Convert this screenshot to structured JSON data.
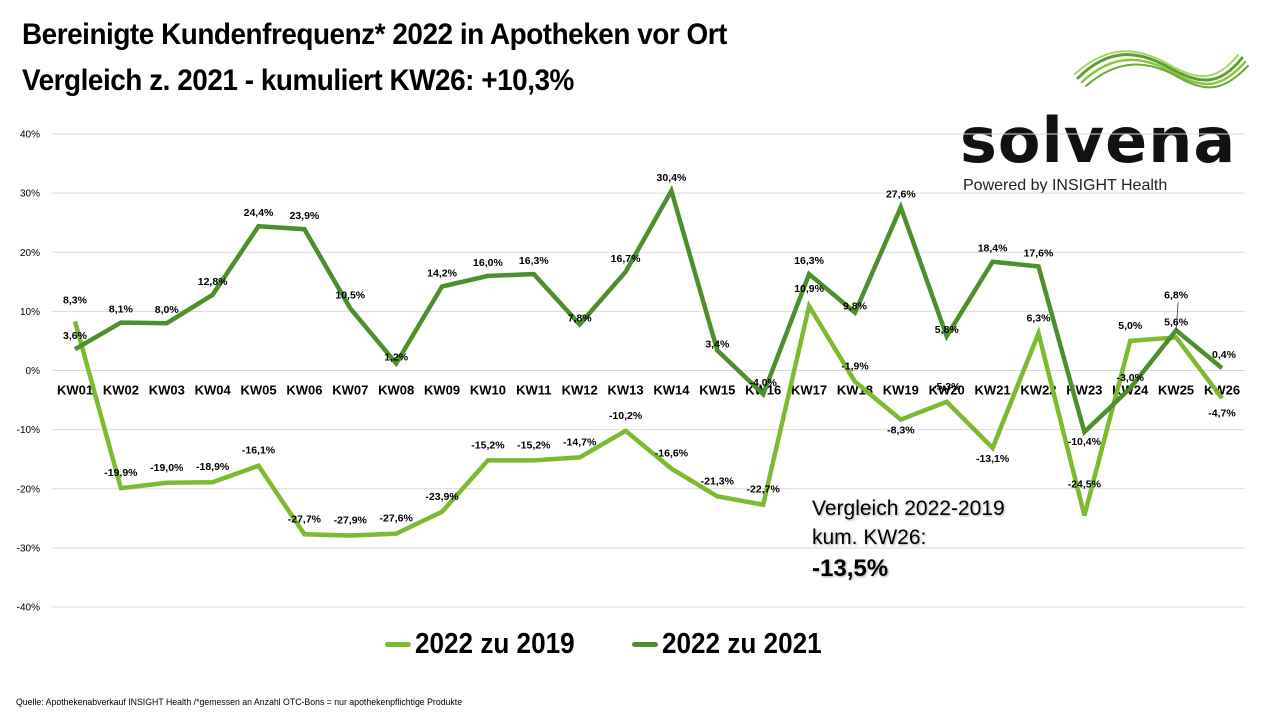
{
  "header": {
    "title_line1": "Bereinigte Kundenfrequenz* 2022 in Apotheken vor Ort",
    "title_line2": "Vergleich z. 2021 - kumuliert KW26: +10,3%"
  },
  "logo": {
    "wordmark": "solvena",
    "tagline": "Powered by INSIGHT Health",
    "icon": "green-wave-icon"
  },
  "annotation": {
    "line1": "Vergleich 2022-2019",
    "line2": "kum. KW26:",
    "value": "-13,5%"
  },
  "footer": {
    "source": "Quelle: Apothekenabverkauf  INSIGHT Health /*gemessen an Anzahl OTC-Bons = nur apothekenpflichtige  Produkte"
  },
  "colors": {
    "series_2019": "#7DBA2F",
    "series_2021": "#4E8F2D",
    "gridline": "#D9D9D9"
  },
  "chart_data": {
    "type": "line",
    "title": "Bereinigte Kundenfrequenz* 2022 in Apotheken vor Ort",
    "subtitle": "Vergleich z. 2021 - kumuliert KW26: +10,3%",
    "xlabel": "",
    "ylabel": "",
    "ylim": [
      -40,
      40
    ],
    "yticks": [
      40,
      30,
      20,
      10,
      0,
      -10,
      -20,
      -30,
      -40
    ],
    "ytick_labels": [
      "40%",
      "30%",
      "20%",
      "10%",
      "0%",
      "-10%",
      "-20%",
      "-30%",
      "-40%"
    ],
    "grid": true,
    "legend_position": "bottom",
    "categories": [
      "KW01",
      "KW02",
      "KW03",
      "KW04",
      "KW05",
      "KW06",
      "KW07",
      "KW08",
      "KW09",
      "KW10",
      "KW11",
      "KW12",
      "KW13",
      "KW14",
      "KW15",
      "KW16",
      "KW17",
      "KW18",
      "KW19",
      "KW20",
      "KW21",
      "KW22",
      "KW23",
      "KW24",
      "KW25",
      "KW26"
    ],
    "series": [
      {
        "name": "2022 zu 2019",
        "color": "#7DBA2F",
        "values": [
          8.3,
          -19.9,
          -19.0,
          -18.9,
          -16.1,
          -27.7,
          -27.9,
          -27.6,
          -23.9,
          -15.2,
          -15.2,
          -14.7,
          -10.2,
          -16.6,
          -21.3,
          -22.7,
          10.9,
          -1.9,
          -8.3,
          -5.3,
          -13.1,
          6.3,
          -24.5,
          5.0,
          5.6,
          -4.7
        ],
        "labels": [
          "8,3%",
          "-19,9%",
          "-19,0%",
          "-18,9%",
          "-16,1%",
          "-27,7%",
          "-27,9%",
          "-27,6%",
          "-23,9%",
          "-15,2%",
          "-15,2%",
          "-14,7%",
          "-10,2%",
          "-16,6%",
          "-21,3%",
          "-22,7%",
          "10,9%",
          "-1,9%",
          "-8,3%",
          "-5,3%",
          "-13,1%",
          "6,3%",
          "-24,5%",
          "5,0%",
          "5,6%",
          "-4,7%"
        ]
      },
      {
        "name": "2022 zu 2021",
        "color": "#4E8F2D",
        "values": [
          3.6,
          8.1,
          8.0,
          12.8,
          24.4,
          23.9,
          10.5,
          1.2,
          14.2,
          16.0,
          16.3,
          7.8,
          16.7,
          30.4,
          3.4,
          -4.0,
          16.3,
          9.8,
          27.6,
          5.8,
          18.4,
          17.6,
          -10.4,
          -3.0,
          6.8,
          0.4
        ],
        "labels": [
          "3,6%",
          "8,1%",
          "8,0%",
          "12,8%",
          "24,4%",
          "23,9%",
          "10,5%",
          "1,2%",
          "14,2%",
          "16,0%",
          "16,3%",
          "7,8%",
          "16,7%",
          "30,4%",
          "3,4%",
          "-4,0%",
          "16,3%",
          "9,8%",
          "27,6%",
          "5,8%",
          "18,4%",
          "17,6%",
          "-10,4%",
          "-3,0%",
          "6,8%",
          "0,4%"
        ]
      }
    ],
    "annotations": [
      "Vergleich 2022-2019 kum. KW26: -13,5%"
    ]
  }
}
